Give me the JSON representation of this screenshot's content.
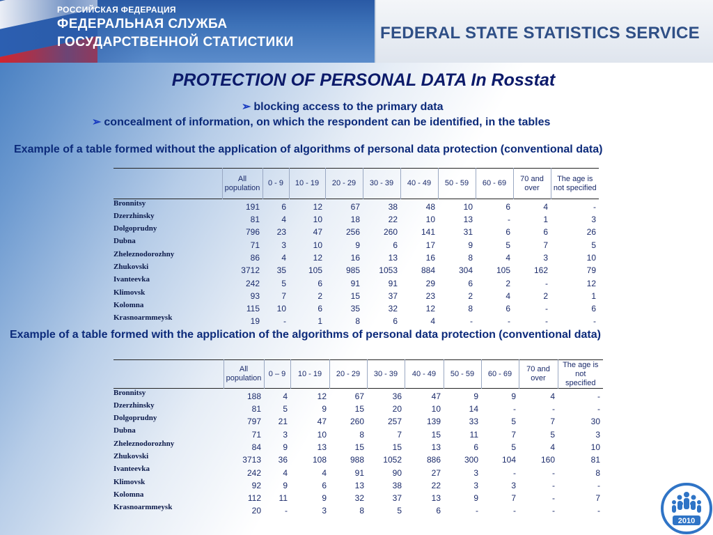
{
  "header": {
    "left_small": "РОССИЙСКАЯ ФЕДЕРАЦИЯ",
    "left_line1": "ФЕДЕРАЛЬНАЯ СЛУЖБА",
    "left_line2": "ГОСУДАРСТВЕННОЙ СТАТИСТИКИ",
    "right_title": "FEDERAL STATE STATISTICS SERVICE"
  },
  "title": "PROTECTION OF PERSONAL DATA In Rosstat",
  "bullets": [
    "blocking access to the primary data",
    "concealment of information, on which the respondent can be identified, in the tables"
  ],
  "captions": [
    "Example of a table formed without the application of algorithms of personal data protection (conventional data)",
    "Example of a table formed with the application of the algorithms of personal data protection (conventional data)"
  ],
  "tables": [
    {
      "columns": [
        "All population",
        "0 - 9",
        "10 - 19",
        "20 - 29",
        "30 - 39",
        "40 - 49",
        "50 - 59",
        "60 - 69",
        "70 and over",
        "The age is not specified"
      ],
      "rows": [
        {
          "name": "Bronnitsy",
          "values": [
            "191",
            "6",
            "12",
            "67",
            "38",
            "48",
            "10",
            "6",
            "4",
            "-"
          ]
        },
        {
          "name": "Dzerzhinsky",
          "values": [
            "81",
            "4",
            "10",
            "18",
            "22",
            "10",
            "13",
            "-",
            "1",
            "3"
          ]
        },
        {
          "name": "Dolgoprudny",
          "values": [
            "796",
            "23",
            "47",
            "256",
            "260",
            "141",
            "31",
            "6",
            "6",
            "26"
          ]
        },
        {
          "name": "Dubna",
          "values": [
            "71",
            "3",
            "10",
            "9",
            "6",
            "17",
            "9",
            "5",
            "7",
            "5"
          ]
        },
        {
          "name": "Zheleznodorozhny",
          "values": [
            "86",
            "4",
            "12",
            "16",
            "13",
            "16",
            "8",
            "4",
            "3",
            "10"
          ]
        },
        {
          "name": "Zhukovski",
          "values": [
            "3712",
            "35",
            "105",
            "985",
            "1053",
            "884",
            "304",
            "105",
            "162",
            "79"
          ]
        },
        {
          "name": "Ivanteevka",
          "values": [
            "242",
            "5",
            "6",
            "91",
            "91",
            "29",
            "6",
            "2",
            "-",
            "12"
          ]
        },
        {
          "name": "Klimovsk",
          "values": [
            "93",
            "7",
            "2",
            "15",
            "37",
            "23",
            "2",
            "4",
            "2",
            "1"
          ]
        },
        {
          "name": "Kolomna",
          "values": [
            "115",
            "10",
            "6",
            "35",
            "32",
            "12",
            "8",
            "6",
            "-",
            "6"
          ]
        },
        {
          "name": "Krasnoarmmeysk",
          "values": [
            "19",
            "-",
            "1",
            "8",
            "6",
            "4",
            "-",
            "-",
            "-",
            "-"
          ]
        }
      ]
    },
    {
      "columns": [
        "All population",
        "0 – 9",
        "10 - 19",
        "20 - 29",
        "30 - 39",
        "40 - 49",
        "50 - 59",
        "60 - 69",
        "70 and over",
        "The age is not specified"
      ],
      "rows": [
        {
          "name": "Bronnitsy",
          "values": [
            "188",
            "4",
            "12",
            "67",
            "36",
            "47",
            "9",
            "9",
            "4",
            "-"
          ]
        },
        {
          "name": "Dzerzhinsky",
          "values": [
            "81",
            "5",
            "9",
            "15",
            "20",
            "10",
            "14",
            "-",
            "-",
            "-"
          ]
        },
        {
          "name": "Dolgoprudny",
          "values": [
            "797",
            "21",
            "47",
            "260",
            "257",
            "139",
            "33",
            "5",
            "7",
            "30"
          ]
        },
        {
          "name": "Dubna",
          "values": [
            "71",
            "3",
            "10",
            "8",
            "7",
            "15",
            "11",
            "7",
            "5",
            "3"
          ]
        },
        {
          "name": "Zheleznodorozhny",
          "values": [
            "84",
            "9",
            "13",
            "15",
            "15",
            "13",
            "6",
            "5",
            "4",
            "10"
          ]
        },
        {
          "name": "Zhukovski",
          "values": [
            "3713",
            "36",
            "108",
            "988",
            "1052",
            "886",
            "300",
            "104",
            "160",
            "81"
          ]
        },
        {
          "name": "Ivanteevka",
          "values": [
            "242",
            "4",
            "4",
            "91",
            "90",
            "27",
            "3",
            "-",
            "-",
            "8"
          ]
        },
        {
          "name": "Klimovsk",
          "values": [
            "92",
            "9",
            "6",
            "13",
            "38",
            "22",
            "3",
            "3",
            "-",
            "-"
          ]
        },
        {
          "name": "Kolomna",
          "values": [
            "112",
            "11",
            "9",
            "32",
            "37",
            "13",
            "9",
            "7",
            "-",
            "7"
          ]
        },
        {
          "name": "Krasnoarmmeysk",
          "values": [
            "20",
            "-",
            "3",
            "8",
            "5",
            "6",
            "-",
            "-",
            "-",
            "-"
          ]
        }
      ]
    }
  ],
  "logo": {
    "year": "2010",
    "icon": "census-people-logo-icon"
  }
}
